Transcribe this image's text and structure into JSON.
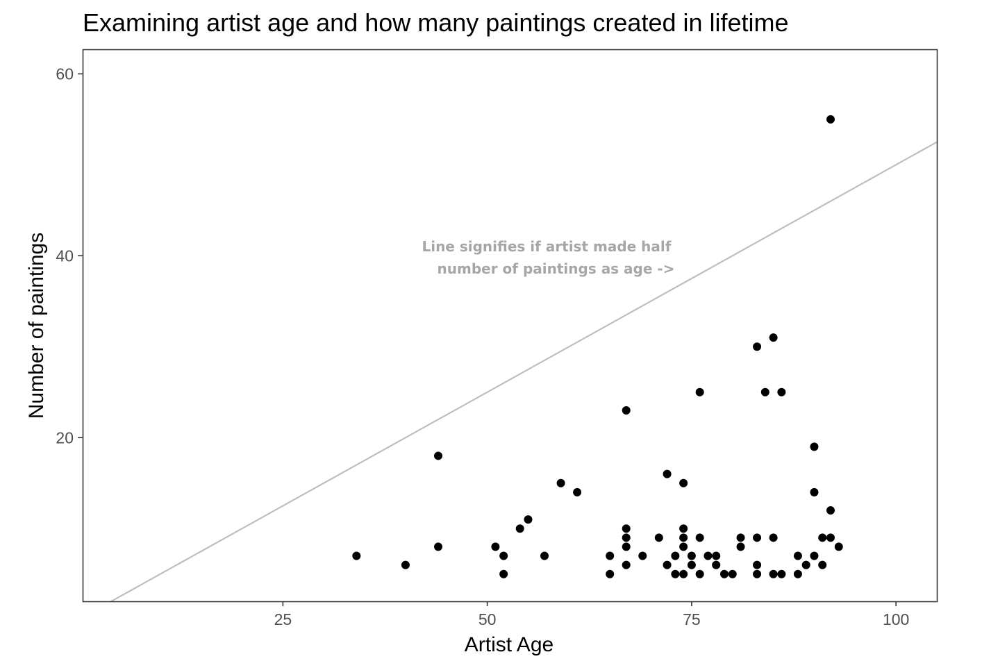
{
  "chart_data": {
    "type": "scatter",
    "title": "Examining artist age and how many paintings created in lifetime",
    "xlabel": "Artist Age",
    "ylabel": "Number of paintings",
    "xlim": [
      0.5,
      105
    ],
    "ylim": [
      2,
      62.7
    ],
    "xticks": [
      25,
      50,
      75,
      100
    ],
    "yticks": [
      20,
      40,
      60
    ],
    "grid": false,
    "colors": {
      "points": "#000000",
      "reference_line": "#bebebe",
      "annotation": "#a6a6a6",
      "panel_border": "#333333"
    },
    "reference_line": {
      "slope": 0.5,
      "intercept": 0
    },
    "annotation": {
      "lines": [
        "Line signifies if artist made half",
        "number of paintings as age ->"
      ],
      "x": 72.5,
      "y": 40.5
    },
    "points": [
      {
        "x": 34,
        "y": 7
      },
      {
        "x": 40,
        "y": 6
      },
      {
        "x": 44,
        "y": 18
      },
      {
        "x": 44,
        "y": 8
      },
      {
        "x": 51,
        "y": 8
      },
      {
        "x": 52,
        "y": 7
      },
      {
        "x": 52,
        "y": 5
      },
      {
        "x": 54,
        "y": 10
      },
      {
        "x": 55,
        "y": 11
      },
      {
        "x": 57,
        "y": 7
      },
      {
        "x": 59,
        "y": 15
      },
      {
        "x": 61,
        "y": 14
      },
      {
        "x": 65,
        "y": 7
      },
      {
        "x": 65,
        "y": 5
      },
      {
        "x": 67,
        "y": 23
      },
      {
        "x": 67,
        "y": 10
      },
      {
        "x": 67,
        "y": 9
      },
      {
        "x": 67,
        "y": 8
      },
      {
        "x": 67,
        "y": 6
      },
      {
        "x": 69,
        "y": 7
      },
      {
        "x": 71,
        "y": 9
      },
      {
        "x": 72,
        "y": 16
      },
      {
        "x": 72,
        "y": 6
      },
      {
        "x": 73,
        "y": 7
      },
      {
        "x": 73,
        "y": 5
      },
      {
        "x": 74,
        "y": 15
      },
      {
        "x": 74,
        "y": 10
      },
      {
        "x": 74,
        "y": 9
      },
      {
        "x": 74,
        "y": 8
      },
      {
        "x": 74,
        "y": 5
      },
      {
        "x": 75,
        "y": 7
      },
      {
        "x": 75,
        "y": 6
      },
      {
        "x": 76,
        "y": 25
      },
      {
        "x": 76,
        "y": 9
      },
      {
        "x": 76,
        "y": 5
      },
      {
        "x": 77,
        "y": 7
      },
      {
        "x": 78,
        "y": 7
      },
      {
        "x": 78,
        "y": 6
      },
      {
        "x": 79,
        "y": 5
      },
      {
        "x": 80,
        "y": 5
      },
      {
        "x": 81,
        "y": 9
      },
      {
        "x": 81,
        "y": 8
      },
      {
        "x": 83,
        "y": 30
      },
      {
        "x": 83,
        "y": 9
      },
      {
        "x": 83,
        "y": 6
      },
      {
        "x": 83,
        "y": 5
      },
      {
        "x": 84,
        "y": 25
      },
      {
        "x": 85,
        "y": 31
      },
      {
        "x": 85,
        "y": 9
      },
      {
        "x": 85,
        "y": 5
      },
      {
        "x": 86,
        "y": 25
      },
      {
        "x": 86,
        "y": 5
      },
      {
        "x": 88,
        "y": 7
      },
      {
        "x": 88,
        "y": 5
      },
      {
        "x": 89,
        "y": 6
      },
      {
        "x": 90,
        "y": 19
      },
      {
        "x": 90,
        "y": 14
      },
      {
        "x": 90,
        "y": 7
      },
      {
        "x": 91,
        "y": 9
      },
      {
        "x": 91,
        "y": 6
      },
      {
        "x": 92,
        "y": 55
      },
      {
        "x": 92,
        "y": 12
      },
      {
        "x": 92,
        "y": 9
      },
      {
        "x": 93,
        "y": 8
      }
    ]
  }
}
